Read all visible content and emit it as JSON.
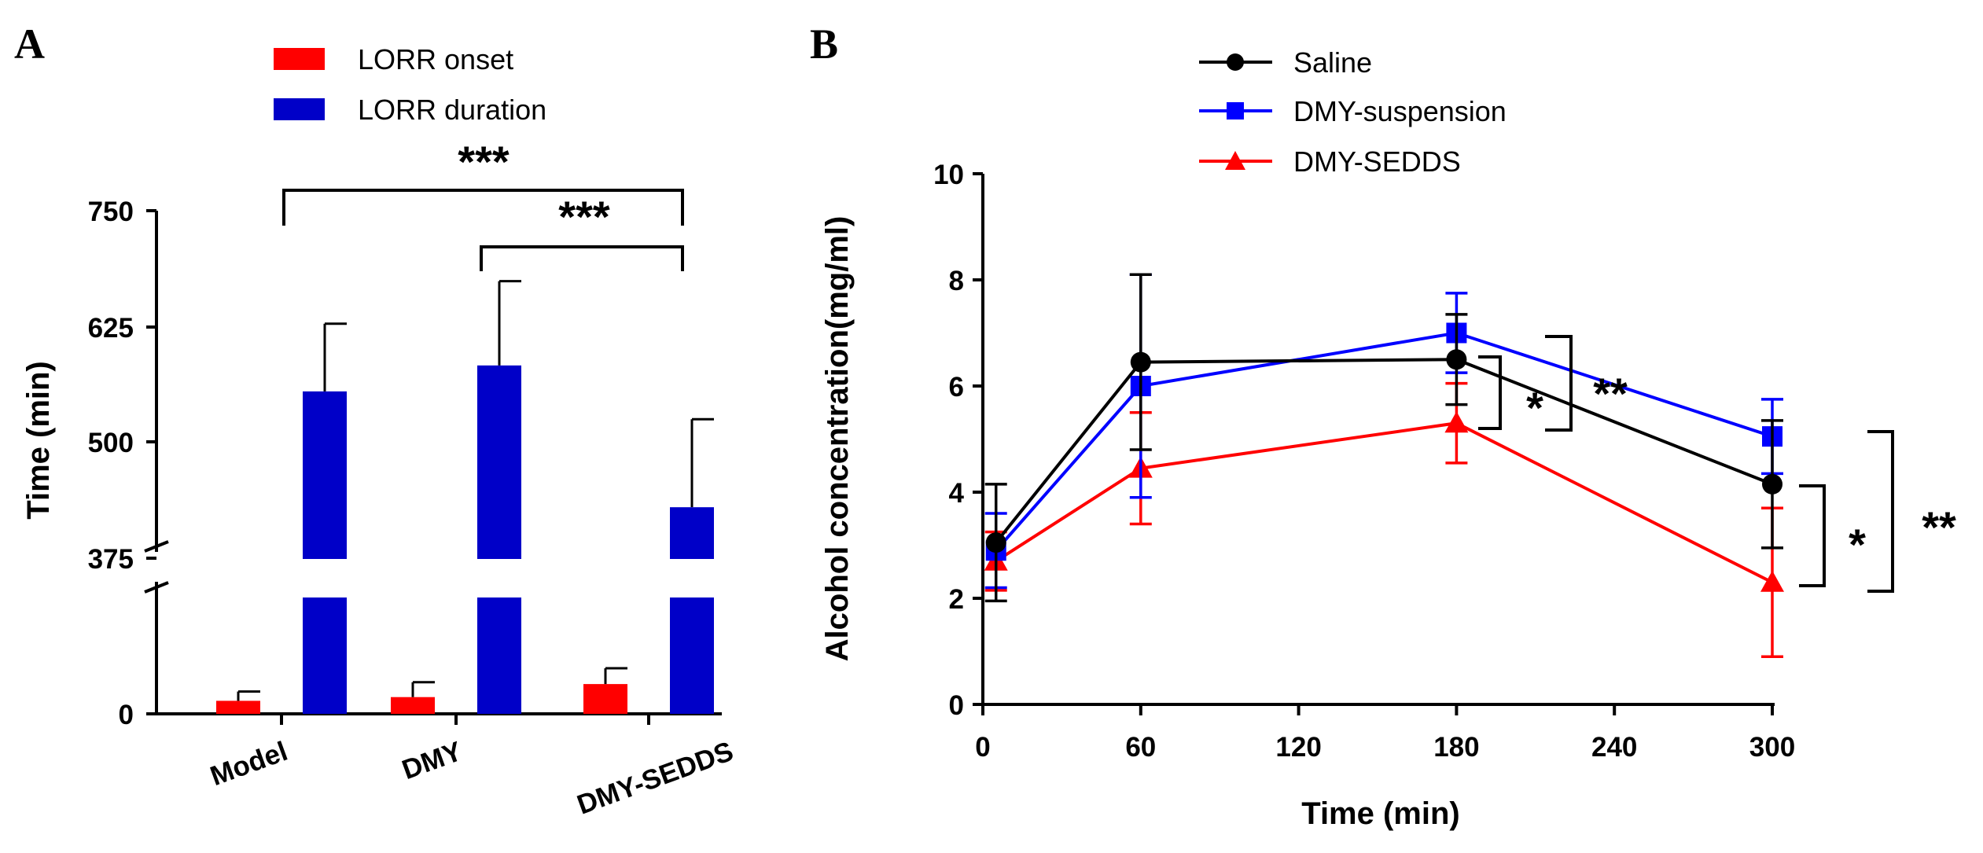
{
  "chart_data": [
    {
      "panel": "A",
      "type": "bar",
      "categories": [
        "Model",
        "DMY",
        "DMY-SEDDS"
      ],
      "ylabel": "Time (min)",
      "y_axis": "broken",
      "yticks_lower": [
        "0"
      ],
      "yticks_upper": [
        "375",
        "500",
        "625",
        "750"
      ],
      "ylim_upper": [
        375,
        750
      ],
      "series": [
        {
          "name": "LORR onset",
          "color": "#ff0000",
          "values": [
            14,
            18,
            32
          ],
          "error": [
            10,
            16,
            17
          ]
        },
        {
          "name": "LORR duration",
          "color": "#0000c8",
          "values": [
            555,
            583,
            430
          ],
          "error": [
            73,
            91,
            95
          ]
        }
      ],
      "annotations": [
        {
          "text": "***",
          "between": [
            "Model",
            "DMY-SEDDS"
          ]
        },
        {
          "text": "***",
          "between": [
            "DMY",
            "DMY-SEDDS"
          ]
        }
      ]
    },
    {
      "panel": "B",
      "type": "line",
      "x": [
        5,
        60,
        180,
        300
      ],
      "xlabel": "Time (min)",
      "ylabel": "Alcohol concentration(mg/ml)",
      "xlim": [
        0,
        300
      ],
      "ylim": [
        0,
        10
      ],
      "xticks": [
        0,
        60,
        120,
        180,
        240,
        300
      ],
      "yticks": [
        0,
        2,
        4,
        6,
        8,
        10
      ],
      "series": [
        {
          "name": "Saline",
          "color": "#000000",
          "marker": "circle",
          "values": [
            3.05,
            6.45,
            6.5,
            4.15
          ],
          "error": [
            1.1,
            1.65,
            0.85,
            1.2
          ]
        },
        {
          "name": "DMY-suspension",
          "color": "#0000ff",
          "marker": "square",
          "values": [
            2.9,
            6.0,
            7.0,
            5.05
          ],
          "error": [
            0.7,
            2.1,
            0.75,
            0.7
          ]
        },
        {
          "name": "DMY-SEDDS",
          "color": "#ff0000",
          "marker": "triangle",
          "values": [
            2.7,
            4.45,
            5.3,
            2.3
          ],
          "error": [
            0.55,
            1.05,
            0.75,
            1.4
          ]
        }
      ],
      "annotations": [
        {
          "text": "*",
          "between": [
            "Saline",
            "DMY-SEDDS"
          ],
          "at_x": 180
        },
        {
          "text": "**",
          "between": [
            "DMY-suspension",
            "DMY-SEDDS"
          ],
          "at_x": 180
        },
        {
          "text": "*",
          "between": [
            "Saline",
            "DMY-SEDDS"
          ],
          "at_x": 300
        },
        {
          "text": "**",
          "between": [
            "DMY-suspension",
            "DMY-SEDDS"
          ],
          "at_x": 300
        }
      ]
    }
  ]
}
